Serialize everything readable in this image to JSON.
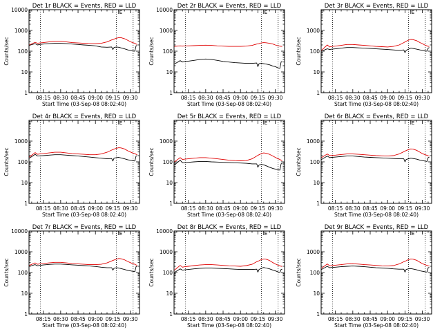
{
  "chart_data": {
    "type": "line",
    "shared": {
      "ylabel": "Counts/sec",
      "xlabel": "Start Time (03-Sep-08 08:02:40)",
      "xtick_labels": [
        "08:15",
        "08:30",
        "08:45",
        "09:00",
        "09:15",
        "09:30"
      ],
      "xtick_minutes": [
        15,
        30,
        45,
        60,
        75,
        90
      ],
      "xlim_minutes": [
        2.7,
        98
      ],
      "yscale": "log",
      "ylim": [
        1,
        10000
      ],
      "ytick_labels_full": [
        "10000",
        "1000",
        "100",
        "10",
        "1"
      ],
      "ytick_labels_short": [
        "1000",
        "100",
        "10",
        "1"
      ],
      "ytick_values_full": [
        10000,
        1000,
        100,
        10,
        1
      ],
      "ytick_values_short": [
        1000,
        100,
        10,
        1
      ],
      "dotted_vlines_minutes": [
        12.5,
        78,
        92.5
      ],
      "flag_minute": 80,
      "flag_label": "E",
      "colors": {
        "events": "#000000",
        "lld": "#e00000"
      },
      "x_minutes": [
        3,
        8,
        10,
        12,
        15,
        20,
        25,
        30,
        35,
        40,
        45,
        50,
        55,
        60,
        65,
        70,
        74,
        75,
        76,
        78,
        80,
        82,
        85,
        88,
        90,
        92,
        94,
        95,
        96
      ]
    },
    "panels": [
      {
        "title": "Det 1r BLACK = Events, RED = LLD",
        "ytick_set": "full",
        "series": [
          {
            "name": "Events",
            "color": "#000000",
            "values": [
              190,
              230,
              200,
              210,
              220,
              230,
              240,
              240,
              230,
              220,
              210,
              200,
              190,
              180,
              160,
              155,
              160,
              120,
              150,
              160,
              155,
              145,
              130,
              115,
              110,
              105,
              100,
              180,
              190
            ]
          },
          {
            "name": "LLD",
            "color": "#e00000",
            "values": [
              200,
              270,
              240,
              250,
              260,
              280,
              300,
              300,
              280,
              260,
              250,
              240,
              230,
              230,
              240,
              280,
              350,
              360,
              380,
              420,
              450,
              450,
              400,
              330,
              290,
              260,
              240,
              220,
              210
            ]
          }
        ]
      },
      {
        "title": "Det 2r BLACK = Events, RED = LLD",
        "ytick_set": "full",
        "series": [
          {
            "name": "Events",
            "color": "#000000",
            "values": [
              24,
              35,
              30,
              32,
              33,
              36,
              40,
              42,
              40,
              36,
              32,
              30,
              28,
              27,
              26,
              26,
              27,
              18,
              25,
              26,
              25,
              24,
              22,
              19,
              18,
              16,
              15,
              30,
              32
            ]
          },
          {
            "name": "LLD",
            "color": "#e00000",
            "values": [
              170,
              180,
              175,
              180,
              180,
              185,
              190,
              195,
              190,
              180,
              175,
              170,
              170,
              170,
              175,
              190,
              220,
              225,
              230,
              250,
              260,
              255,
              240,
              220,
              200,
              185,
              175,
              170,
              170
            ]
          }
        ]
      },
      {
        "title": "Det 3r BLACK = Events, RED = LLD",
        "ytick_set": "short",
        "series": [
          {
            "name": "Events",
            "color": "#000000",
            "values": [
              100,
              130,
              120,
              125,
              130,
              140,
              150,
              150,
              145,
              140,
              135,
              130,
              125,
              120,
              115,
              110,
              115,
              85,
              110,
              125,
              140,
              135,
              125,
              115,
              110,
              105,
              100,
              140,
              150
            ]
          },
          {
            "name": "LLD",
            "color": "#e00000",
            "values": [
              110,
              200,
              160,
              170,
              175,
              190,
              210,
              210,
              200,
              190,
              180,
              170,
              165,
              160,
              170,
              200,
              260,
              280,
              300,
              340,
              370,
              360,
              320,
              260,
              230,
              200,
              180,
              170,
              170
            ]
          }
        ]
      },
      {
        "title": "Det 4r BLACK = Events, RED = LLD",
        "ytick_set": "short",
        "series": [
          {
            "name": "Events",
            "color": "#000000",
            "values": [
              150,
              230,
              190,
              195,
              200,
              210,
              220,
              220,
              210,
              200,
              190,
              180,
              170,
              160,
              150,
              140,
              145,
              110,
              150,
              160,
              165,
              155,
              140,
              125,
              120,
              115,
              110,
              190,
              200
            ]
          },
          {
            "name": "LLD",
            "color": "#e00000",
            "values": [
              170,
              280,
              230,
              240,
              250,
              270,
              290,
              290,
              270,
              250,
              240,
              230,
              220,
              220,
              240,
              290,
              370,
              390,
              410,
              450,
              480,
              470,
              420,
              340,
              300,
              270,
              250,
              230,
              220
            ]
          }
        ]
      },
      {
        "title": "Det 5r BLACK = Events, RED = LLD",
        "ytick_set": "short",
        "series": [
          {
            "name": "Events",
            "color": "#000000",
            "values": [
              70,
              120,
              90,
              92,
              95,
              100,
              105,
              105,
              100,
              98,
              95,
              92,
              90,
              88,
              85,
              80,
              80,
              55,
              70,
              75,
              72,
              65,
              55,
              48,
              45,
              42,
              40,
              80,
              85
            ]
          },
          {
            "name": "LLD",
            "color": "#e00000",
            "values": [
              100,
              160,
              130,
              135,
              140,
              150,
              160,
              160,
              150,
              140,
              130,
              120,
              115,
              112,
              115,
              140,
              190,
              205,
              220,
              250,
              270,
              260,
              230,
              190,
              165,
              145,
              130,
              120,
              115
            ]
          }
        ]
      },
      {
        "title": "Det 6r BLACK = Events, RED = LLD",
        "ytick_set": "short",
        "series": [
          {
            "name": "Events",
            "color": "#000000",
            "values": [
              130,
              190,
              160,
              165,
              170,
              180,
              190,
              190,
              180,
              170,
              165,
              160,
              155,
              150,
              145,
              140,
              140,
              100,
              130,
              140,
              150,
              145,
              135,
              120,
              115,
              110,
              105,
              160,
              170
            ]
          },
          {
            "name": "LLD",
            "color": "#e00000",
            "values": [
              160,
              240,
              200,
              205,
              210,
              225,
              240,
              240,
              230,
              220,
              210,
              200,
              195,
              190,
              200,
              240,
              310,
              330,
              350,
              390,
              420,
              410,
              360,
              290,
              250,
              225,
              205,
              195,
              190
            ]
          }
        ]
      },
      {
        "title": "Det 7r BLACK = Events, RED = LLD",
        "ytick_set": "full",
        "series": [
          {
            "name": "Events",
            "color": "#000000",
            "values": [
              200,
              240,
              210,
              220,
              230,
              245,
              255,
              255,
              245,
              235,
              225,
              215,
              205,
              195,
              180,
              170,
              170,
              130,
              160,
              170,
              165,
              155,
              140,
              125,
              120,
              115,
              110,
              190,
              200
            ]
          },
          {
            "name": "LLD",
            "color": "#e00000",
            "values": [
              220,
              290,
              250,
              260,
              270,
              290,
              310,
              310,
              290,
              270,
              260,
              250,
              240,
              240,
              250,
              290,
              360,
              380,
              400,
              440,
              470,
              460,
              410,
              340,
              300,
              270,
              250,
              230,
              220
            ]
          }
        ]
      },
      {
        "title": "Det 8r BLACK = Events, RED = LLD",
        "ytick_set": "full",
        "series": [
          {
            "name": "Events",
            "color": "#000000",
            "values": [
              100,
              150,
              130,
              135,
              140,
              150,
              160,
              165,
              165,
              160,
              155,
              150,
              145,
              140,
              140,
              140,
              145,
              105,
              140,
              160,
              175,
              165,
              150,
              130,
              120,
              110,
              100,
              140,
              145
            ]
          },
          {
            "name": "LLD",
            "color": "#e00000",
            "values": [
              130,
              220,
              180,
              190,
              200,
              215,
              230,
              240,
              240,
              230,
              220,
              210,
              205,
              200,
              215,
              250,
              330,
              350,
              370,
              420,
              450,
              440,
              380,
              300,
              260,
              230,
              210,
              200,
              200
            ]
          }
        ]
      },
      {
        "title": "Det 9r BLACK = Events, RED = LLD",
        "ytick_set": "short",
        "series": [
          {
            "name": "Events",
            "color": "#000000",
            "values": [
              140,
              200,
              170,
              175,
              180,
              190,
              200,
              205,
              200,
              190,
              180,
              170,
              165,
              160,
              150,
              145,
              145,
              105,
              140,
              150,
              155,
              148,
              135,
              120,
              115,
              110,
              105,
              170,
              175
            ]
          },
          {
            "name": "LLD",
            "color": "#e00000",
            "values": [
              160,
              260,
              210,
              215,
              225,
              240,
              260,
              265,
              255,
              240,
              230,
              220,
              210,
              205,
              215,
              260,
              330,
              350,
              370,
              420,
              450,
              440,
              390,
              310,
              270,
              240,
              220,
              210,
              205
            ]
          }
        ]
      }
    ]
  }
}
